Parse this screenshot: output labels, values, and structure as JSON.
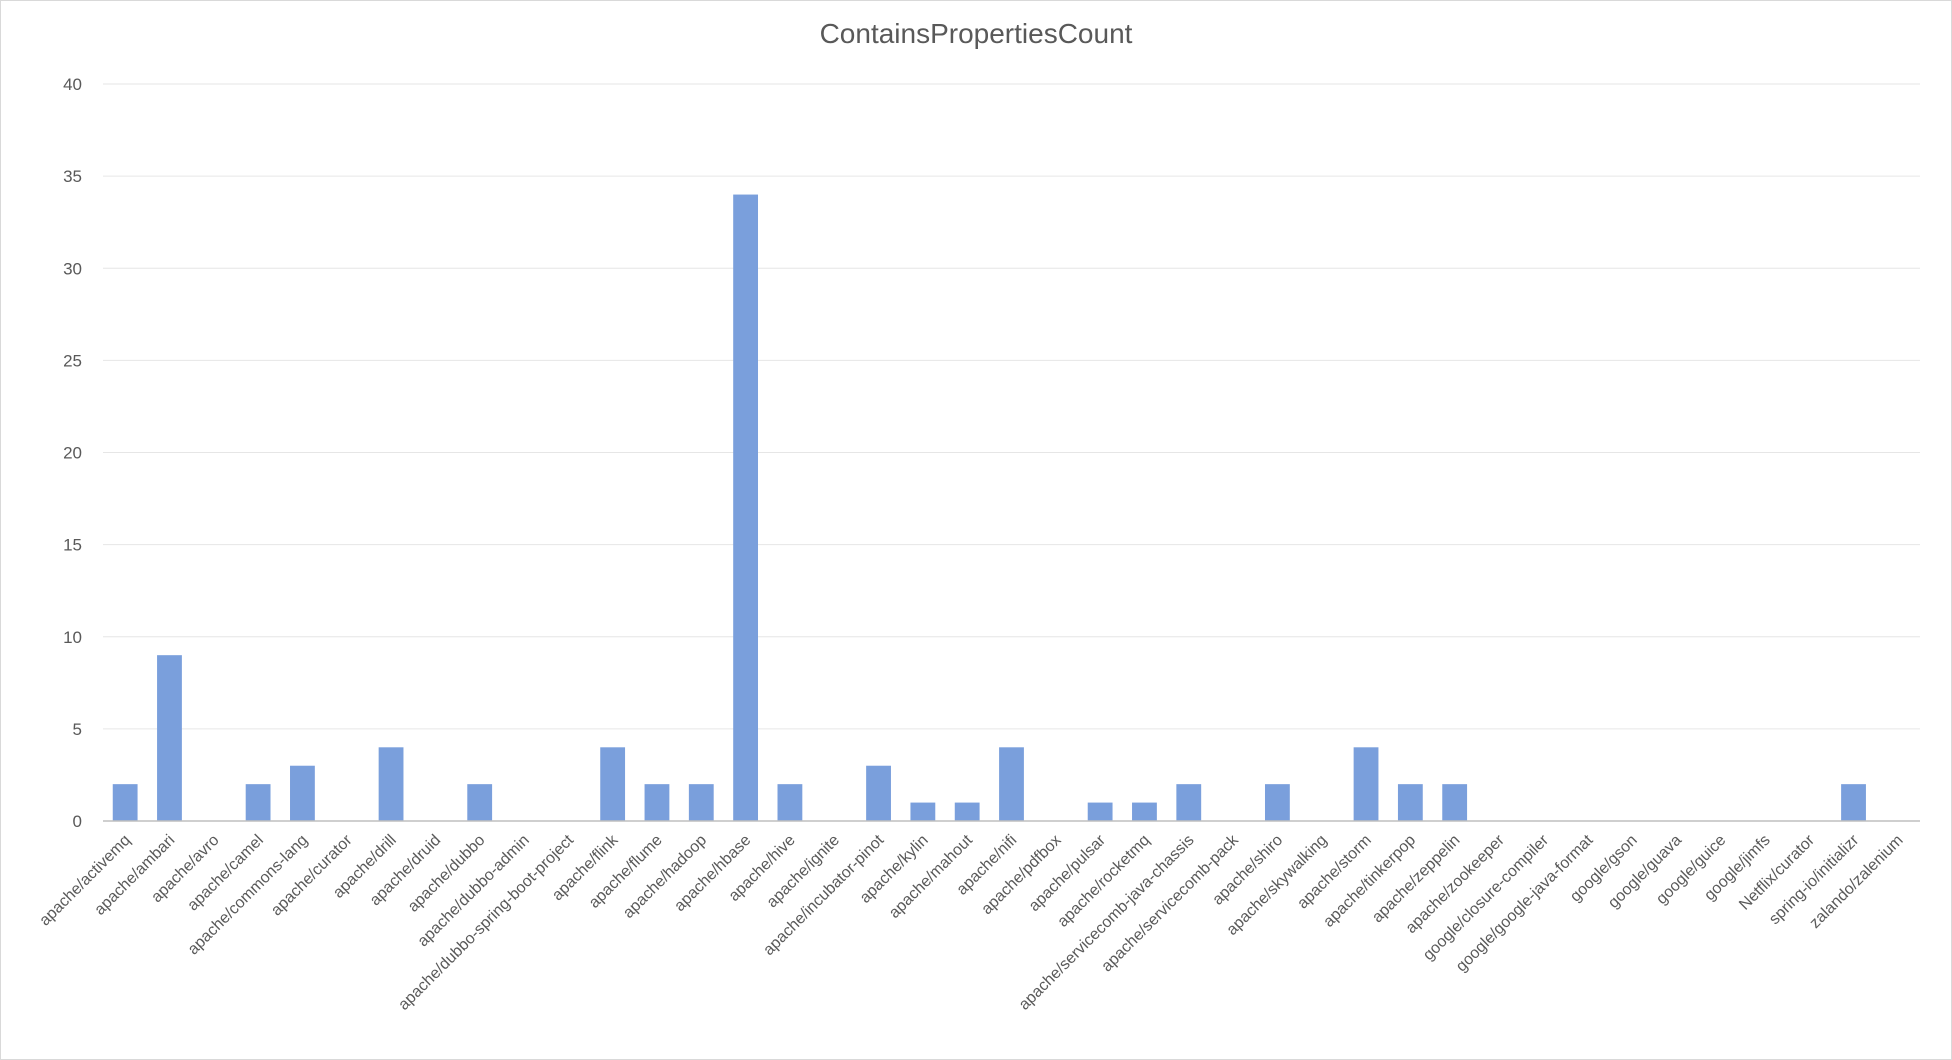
{
  "chart_data": {
    "type": "bar",
    "title": "ContainsPropertiesCount",
    "xlabel": "",
    "ylabel": "",
    "ylim": [
      0,
      40
    ],
    "yticks": [
      "0",
      "5",
      "10",
      "15",
      "20",
      "25",
      "30",
      "35",
      "40"
    ],
    "grid": true,
    "legend": "none",
    "bar_color": "#7a9fdc",
    "categories": [
      "apache/activemq",
      "apache/ambari",
      "apache/avro",
      "apache/camel",
      "apache/commons-lang",
      "apache/curator",
      "apache/drill",
      "apache/druid",
      "apache/dubbo",
      "apache/dubbo-admin",
      "apache/dubbo-spring-boot-project",
      "apache/flink",
      "apache/flume",
      "apache/hadoop",
      "apache/hbase",
      "apache/hive",
      "apache/ignite",
      "apache/incubator-pinot",
      "apache/kylin",
      "apache/mahout",
      "apache/nifi",
      "apache/pdfbox",
      "apache/pulsar",
      "apache/rocketmq",
      "apache/servicecomb-java-chassis",
      "apache/servicecomb-pack",
      "apache/shiro",
      "apache/skywalking",
      "apache/storm",
      "apache/tinkerpop",
      "apache/zeppelin",
      "apache/zookeeper",
      "google/closure-compiler",
      "google/google-java-format",
      "google/gson",
      "google/guava",
      "google/guice",
      "google/jimfs",
      "Netflix/curator",
      "spring-io/initializr",
      "zalando/zalenium"
    ],
    "values": [
      2,
      9,
      0,
      2,
      3,
      0,
      4,
      0,
      2,
      0,
      0,
      4,
      2,
      2,
      34,
      2,
      0,
      3,
      1,
      1,
      4,
      0,
      1,
      1,
      2,
      0,
      2,
      0,
      4,
      2,
      2,
      0,
      0,
      0,
      0,
      0,
      0,
      0,
      0,
      2,
      0
    ]
  }
}
